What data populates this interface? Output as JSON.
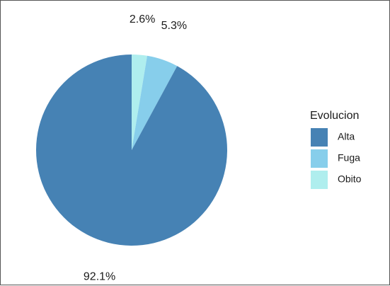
{
  "chart_data": {
    "type": "pie",
    "legend": {
      "title": "Evolucion",
      "position": "right"
    },
    "slices": [
      {
        "label": "Alta",
        "value": 92.1,
        "display": "92.1%",
        "color": "#4682b4"
      },
      {
        "label": "Fuga",
        "value": 5.3,
        "display": "5.3%",
        "color": "#87ceeb"
      },
      {
        "label": "Obito",
        "value": 2.6,
        "display": "2.6%",
        "color": "#afeeee"
      }
    ]
  }
}
